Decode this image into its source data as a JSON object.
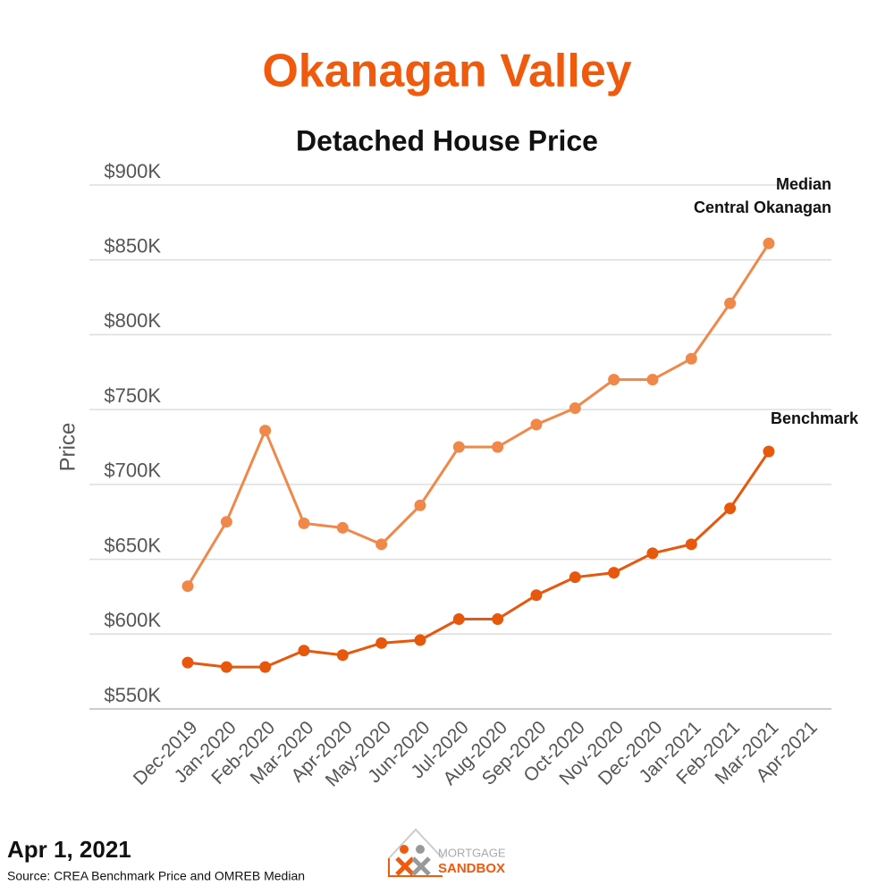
{
  "chart_data": {
    "type": "line",
    "title": "Okanagan Valley",
    "subtitle": "Detached House Price",
    "y_label": "Price",
    "categories": [
      "Dec-2019",
      "Jan-2020",
      "Feb-2020",
      "Mar-2020",
      "Apr-2020",
      "May-2020",
      "Jun-2020",
      "Jul-2020",
      "Aug-2020",
      "Sep-2020",
      "Oct-2020",
      "Nov-2020",
      "Dec-2020",
      "Jan-2021",
      "Feb-2021",
      "Mar-2021",
      "Apr-2021"
    ],
    "series": [
      {
        "name": "Median\nCentral Okanagan",
        "color": "#f0884a",
        "values": [
          632000,
          675000,
          736000,
          674000,
          671000,
          660000,
          686000,
          725000,
          725000,
          740000,
          751000,
          770000,
          770000,
          784000,
          821000,
          861000,
          null
        ]
      },
      {
        "name": "Benchmark",
        "color": "#e8580c",
        "values": [
          581000,
          578000,
          578000,
          589000,
          586000,
          594000,
          596000,
          610000,
          610000,
          626000,
          638000,
          641000,
          654000,
          660000,
          684000,
          722000,
          null
        ]
      }
    ],
    "ylim": [
      550000,
      900000
    ],
    "yticks": [
      {
        "value": 550000,
        "label": "$550K"
      },
      {
        "value": 600000,
        "label": "$600K"
      },
      {
        "value": 650000,
        "label": "$650K"
      },
      {
        "value": 700000,
        "label": "$700K"
      },
      {
        "value": 750000,
        "label": "$750K"
      },
      {
        "value": 800000,
        "label": "$800K"
      },
      {
        "value": 850000,
        "label": "$850K"
      },
      {
        "value": 900000,
        "label": "$900K"
      }
    ],
    "grid": true
  },
  "footer": {
    "date": "Apr 1, 2021",
    "source": "Source: CREA Benchmark Price and OMREB Median",
    "logo_top": "MORTGAGE",
    "logo_bottom": "SANDBOX"
  }
}
